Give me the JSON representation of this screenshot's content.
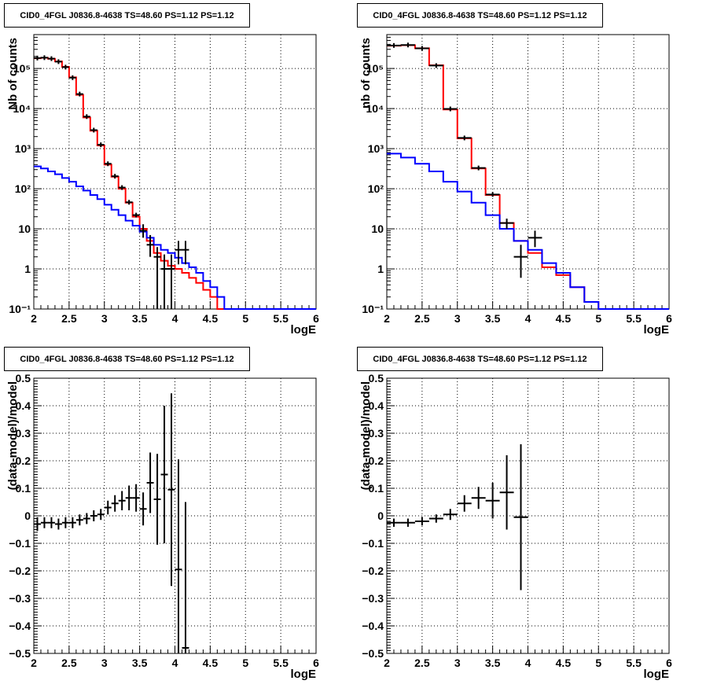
{
  "panels": [
    {
      "title": "CID0_4FGL J0836.8-4638 TS=48.60 PS=1.12 PS=1.12",
      "xlabel": "logE",
      "ylabel": "Nb of counts",
      "xlim": [
        2,
        6
      ],
      "xticks": [
        "2",
        "2.5",
        "3",
        "3.5",
        "4",
        "4.5",
        "5",
        "5.5",
        "6"
      ],
      "ytick_labels": [
        "10⁻¹",
        "1",
        "10",
        "10²",
        "10³",
        "10⁴",
        "10⁵"
      ]
    },
    {
      "title": "CID0_4FGL J0836.8-4638 TS=48.60 PS=1.12 PS=1.12",
      "xlabel": "logE",
      "ylabel": "nb of counts",
      "xlim": [
        2,
        6
      ],
      "xticks": [
        "2",
        "2.5",
        "3",
        "3.5",
        "4",
        "4.5",
        "5",
        "5.5",
        "6"
      ],
      "ytick_labels": [
        "10⁻¹",
        "1",
        "10",
        "10²",
        "10³",
        "10⁴",
        "10⁵"
      ]
    },
    {
      "title": "CID0_4FGL J0836.8-4638 TS=48.60 PS=1.12 PS=1.12",
      "xlabel": "logE",
      "ylabel": "(data-model)/model",
      "xlim": [
        2,
        6
      ],
      "xticks": [
        "2",
        "2.5",
        "3",
        "3.5",
        "4",
        "4.5",
        "5",
        "5.5",
        "6"
      ],
      "ytick_labels": [
        "−0.5",
        "−0.4",
        "−0.3",
        "−0.2",
        "−0.1",
        "0",
        "0.1",
        "0.2",
        "0.3",
        "0.4",
        "0.5"
      ]
    },
    {
      "title": "CID0_4FGL J0836.8-4638 TS=48.60 PS=1.12 PS=1.12",
      "xlabel": "logE",
      "ylabel": "(data-model)/model",
      "xlim": [
        2,
        6
      ],
      "xticks": [
        "2",
        "2.5",
        "3",
        "3.5",
        "4",
        "4.5",
        "5",
        "5.5",
        "6"
      ],
      "ytick_labels": [
        "−0.5",
        "−0.4",
        "−0.3",
        "−0.2",
        "−0.1",
        "0",
        "0.1",
        "0.2",
        "0.3",
        "0.4",
        "0.5"
      ]
    }
  ],
  "chart_data": [
    {
      "type": "line",
      "title": "CID0_4FGL J0836.8-4638 TS=48.60 PS=1.12 PS=1.12",
      "xlabel": "logE",
      "ylabel": "Nb of counts",
      "xlim": [
        2,
        6
      ],
      "ylim": [
        0.1,
        700000
      ],
      "yscale": "log",
      "grid": true,
      "bin_edges": [
        2.0,
        2.1,
        2.2,
        2.3,
        2.4,
        2.5,
        2.6,
        2.7,
        2.8,
        2.9,
        3.0,
        3.1,
        3.2,
        3.3,
        3.4,
        3.5,
        3.6,
        3.7,
        3.8,
        3.9,
        4.0,
        4.1,
        4.2,
        4.3,
        4.4,
        4.5,
        4.6,
        4.7,
        4.8,
        4.9,
        5.0,
        6.0
      ],
      "series": [
        {
          "color": "#ff0000",
          "style": "step",
          "values": [
            180000,
            185000,
            175000,
            150000,
            110000,
            60000,
            22000,
            6000,
            2800,
            1200,
            400,
            200,
            100,
            45,
            20,
            10,
            5,
            2.5,
            1.6,
            1.2,
            1.0,
            0.8,
            0.6,
            0.45,
            0.3,
            0.2,
            0.1,
            0.1,
            0.1,
            0.1,
            0.1
          ]
        },
        {
          "color": "#0000ff",
          "style": "step",
          "values": [
            360,
            320,
            270,
            230,
            185,
            150,
            115,
            90,
            70,
            55,
            40,
            30,
            22,
            16,
            12,
            8.5,
            6,
            4,
            3,
            2.5,
            1.9,
            1.4,
            1.1,
            0.8,
            0.5,
            0.35,
            0.2,
            0.1,
            0.1,
            0.1,
            0.1
          ]
        },
        {
          "color": "#000000",
          "style": "errorbar",
          "points": [
            {
              "x": 2.05,
              "y": 182000
            },
            {
              "x": 2.15,
              "y": 186000
            },
            {
              "x": 2.25,
              "y": 176000
            },
            {
              "x": 2.35,
              "y": 148000
            },
            {
              "x": 2.45,
              "y": 108000
            },
            {
              "x": 2.55,
              "y": 59000
            },
            {
              "x": 2.65,
              "y": 23000
            },
            {
              "x": 2.75,
              "y": 6300
            },
            {
              "x": 2.85,
              "y": 2900
            },
            {
              "x": 2.95,
              "y": 1250
            },
            {
              "x": 3.05,
              "y": 420
            },
            {
              "x": 3.15,
              "y": 205
            },
            {
              "x": 3.25,
              "y": 107
            },
            {
              "x": 3.35,
              "y": 46
            },
            {
              "x": 3.45,
              "y": 22
            },
            {
              "x": 3.55,
              "y": 9,
              "lo": 6,
              "hi": 13
            },
            {
              "x": 3.65,
              "y": 4,
              "lo": 2,
              "hi": 7
            },
            {
              "x": 3.75,
              "y": 2,
              "lo": 0.1,
              "hi": 3.5
            },
            {
              "x": 3.85,
              "y": 1,
              "lo": 0.1,
              "hi": 2.3
            },
            {
              "x": 3.95,
              "y": 1,
              "lo": 0.1,
              "hi": 2.3
            },
            {
              "x": 4.05,
              "y": 3,
              "lo": 1.3,
              "hi": 5
            },
            {
              "x": 4.15,
              "y": 3,
              "lo": 1.3,
              "hi": 5
            }
          ]
        }
      ]
    },
    {
      "type": "line",
      "title": "CID0_4FGL J0836.8-4638 TS=48.60 PS=1.12 PS=1.12",
      "xlabel": "logE",
      "ylabel": "nb of counts",
      "xlim": [
        2,
        6
      ],
      "ylim": [
        0.1,
        700000
      ],
      "yscale": "log",
      "grid": true,
      "bin_edges": [
        2.0,
        2.2,
        2.4,
        2.6,
        2.8,
        3.0,
        3.2,
        3.4,
        3.6,
        3.8,
        4.0,
        4.2,
        4.4,
        4.6,
        4.8,
        5.0,
        5.2,
        5.4,
        6.0
      ],
      "series": [
        {
          "color": "#ff0000",
          "style": "step",
          "values": [
            370000,
            380000,
            320000,
            120000,
            9500,
            1800,
            320,
            70,
            14,
            5,
            2.5,
            1.1,
            0.7,
            0.35,
            0.15,
            0.1,
            0.1,
            0.1
          ]
        },
        {
          "color": "#0000ff",
          "style": "step",
          "values": [
            750,
            600,
            420,
            270,
            150,
            85,
            45,
            22,
            10,
            5,
            3,
            1.4,
            0.8,
            0.35,
            0.15,
            0.1,
            0.1,
            0.1
          ]
        },
        {
          "color": "#000000",
          "style": "errorbar",
          "points": [
            {
              "x": 2.1,
              "y": 375000
            },
            {
              "x": 2.3,
              "y": 385000
            },
            {
              "x": 2.5,
              "y": 318000
            },
            {
              "x": 2.7,
              "y": 118000
            },
            {
              "x": 2.9,
              "y": 9800
            },
            {
              "x": 3.1,
              "y": 1850
            },
            {
              "x": 3.3,
              "y": 330
            },
            {
              "x": 3.5,
              "y": 72
            },
            {
              "x": 3.7,
              "y": 14,
              "lo": 10,
              "hi": 18
            },
            {
              "x": 3.9,
              "y": 2,
              "lo": 0.6,
              "hi": 4
            },
            {
              "x": 4.1,
              "y": 6,
              "lo": 3.5,
              "hi": 9
            }
          ]
        }
      ]
    },
    {
      "type": "scatter",
      "title": "CID0_4FGL J0836.8-4638 TS=48.60 PS=1.12 PS=1.12",
      "xlabel": "logE",
      "ylabel": "(data-model)/model",
      "xlim": [
        2,
        6
      ],
      "ylim": [
        -0.5,
        0.5
      ],
      "grid": true,
      "series": [
        {
          "color": "#000000",
          "style": "errorbar",
          "bin_width": 0.1,
          "points": [
            {
              "x": 2.05,
              "y": -0.03,
              "err": 0.025
            },
            {
              "x": 2.15,
              "y": -0.025,
              "err": 0.02
            },
            {
              "x": 2.25,
              "y": -0.025,
              "err": 0.02
            },
            {
              "x": 2.35,
              "y": -0.03,
              "err": 0.02
            },
            {
              "x": 2.45,
              "y": -0.025,
              "err": 0.02
            },
            {
              "x": 2.55,
              "y": -0.025,
              "err": 0.02
            },
            {
              "x": 2.65,
              "y": -0.015,
              "err": 0.02
            },
            {
              "x": 2.75,
              "y": -0.01,
              "err": 0.02
            },
            {
              "x": 2.85,
              "y": 0.0,
              "err": 0.02
            },
            {
              "x": 2.95,
              "y": 0.005,
              "err": 0.02
            },
            {
              "x": 3.05,
              "y": 0.03,
              "err": 0.025
            },
            {
              "x": 3.15,
              "y": 0.045,
              "err": 0.03
            },
            {
              "x": 3.25,
              "y": 0.055,
              "err": 0.035
            },
            {
              "x": 3.35,
              "y": 0.065,
              "err": 0.045
            },
            {
              "x": 3.45,
              "y": 0.065,
              "err": 0.05
            },
            {
              "x": 3.55,
              "y": 0.025,
              "err": 0.06
            },
            {
              "x": 3.65,
              "y": 0.12,
              "err": 0.11
            },
            {
              "x": 3.75,
              "y": 0.06,
              "err": 0.165
            },
            {
              "x": 3.85,
              "y": 0.15,
              "err": 0.25
            },
            {
              "x": 3.95,
              "y": 0.095,
              "err": 0.35
            },
            {
              "x": 4.05,
              "y": -0.195,
              "err": 0.4
            },
            {
              "x": 4.15,
              "y": -0.48,
              "err": 0.53
            }
          ]
        }
      ]
    },
    {
      "type": "scatter",
      "title": "CID0_4FGL J0836.8-4638 TS=48.60 PS=1.12 PS=1.12",
      "xlabel": "logE",
      "ylabel": "(data-model)/model",
      "xlim": [
        2,
        6
      ],
      "ylim": [
        -0.5,
        0.5
      ],
      "grid": true,
      "series": [
        {
          "color": "#000000",
          "style": "errorbar",
          "bin_width": 0.2,
          "points": [
            {
              "x": 2.1,
              "y": -0.025,
              "err": 0.015
            },
            {
              "x": 2.3,
              "y": -0.025,
              "err": 0.015
            },
            {
              "x": 2.5,
              "y": -0.02,
              "err": 0.015
            },
            {
              "x": 2.7,
              "y": -0.01,
              "err": 0.015
            },
            {
              "x": 2.9,
              "y": 0.005,
              "err": 0.02
            },
            {
              "x": 3.1,
              "y": 0.045,
              "err": 0.03
            },
            {
              "x": 3.3,
              "y": 0.065,
              "err": 0.04
            },
            {
              "x": 3.5,
              "y": 0.055,
              "err": 0.065
            },
            {
              "x": 3.7,
              "y": 0.085,
              "err": 0.135
            },
            {
              "x": 3.9,
              "y": -0.005,
              "err": 0.265
            }
          ]
        }
      ]
    }
  ]
}
